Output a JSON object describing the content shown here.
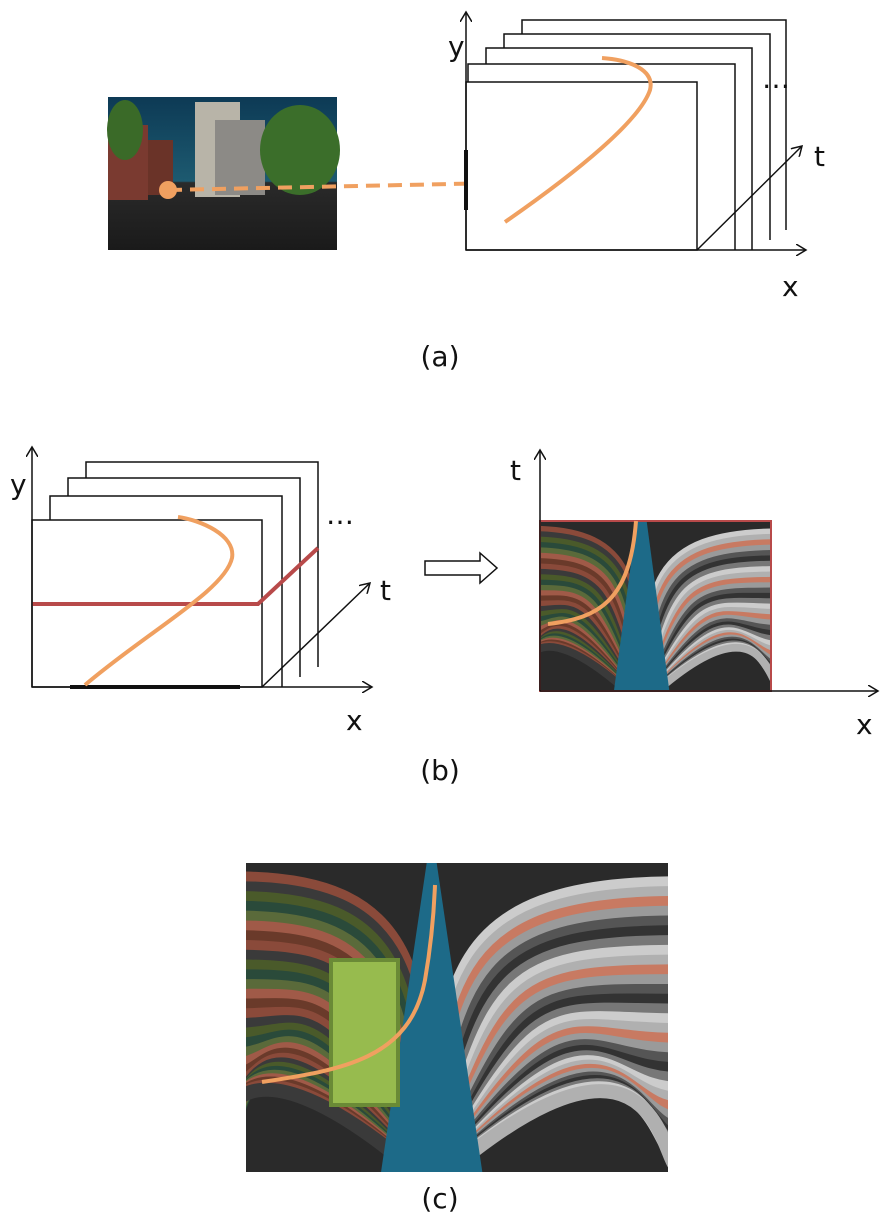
{
  "panels": [
    {
      "label": "(a)",
      "axis_y": "y",
      "axis_t": "t",
      "axis_x": "x",
      "ellipsis": "…"
    },
    {
      "label": "(b)",
      "left": {
        "axis_y": "y",
        "axis_t": "t",
        "axis_x": "x",
        "ellipsis": "…"
      },
      "right": {
        "axis_t": "t",
        "axis_x": "x"
      }
    },
    {
      "label": "(c)"
    }
  ]
}
